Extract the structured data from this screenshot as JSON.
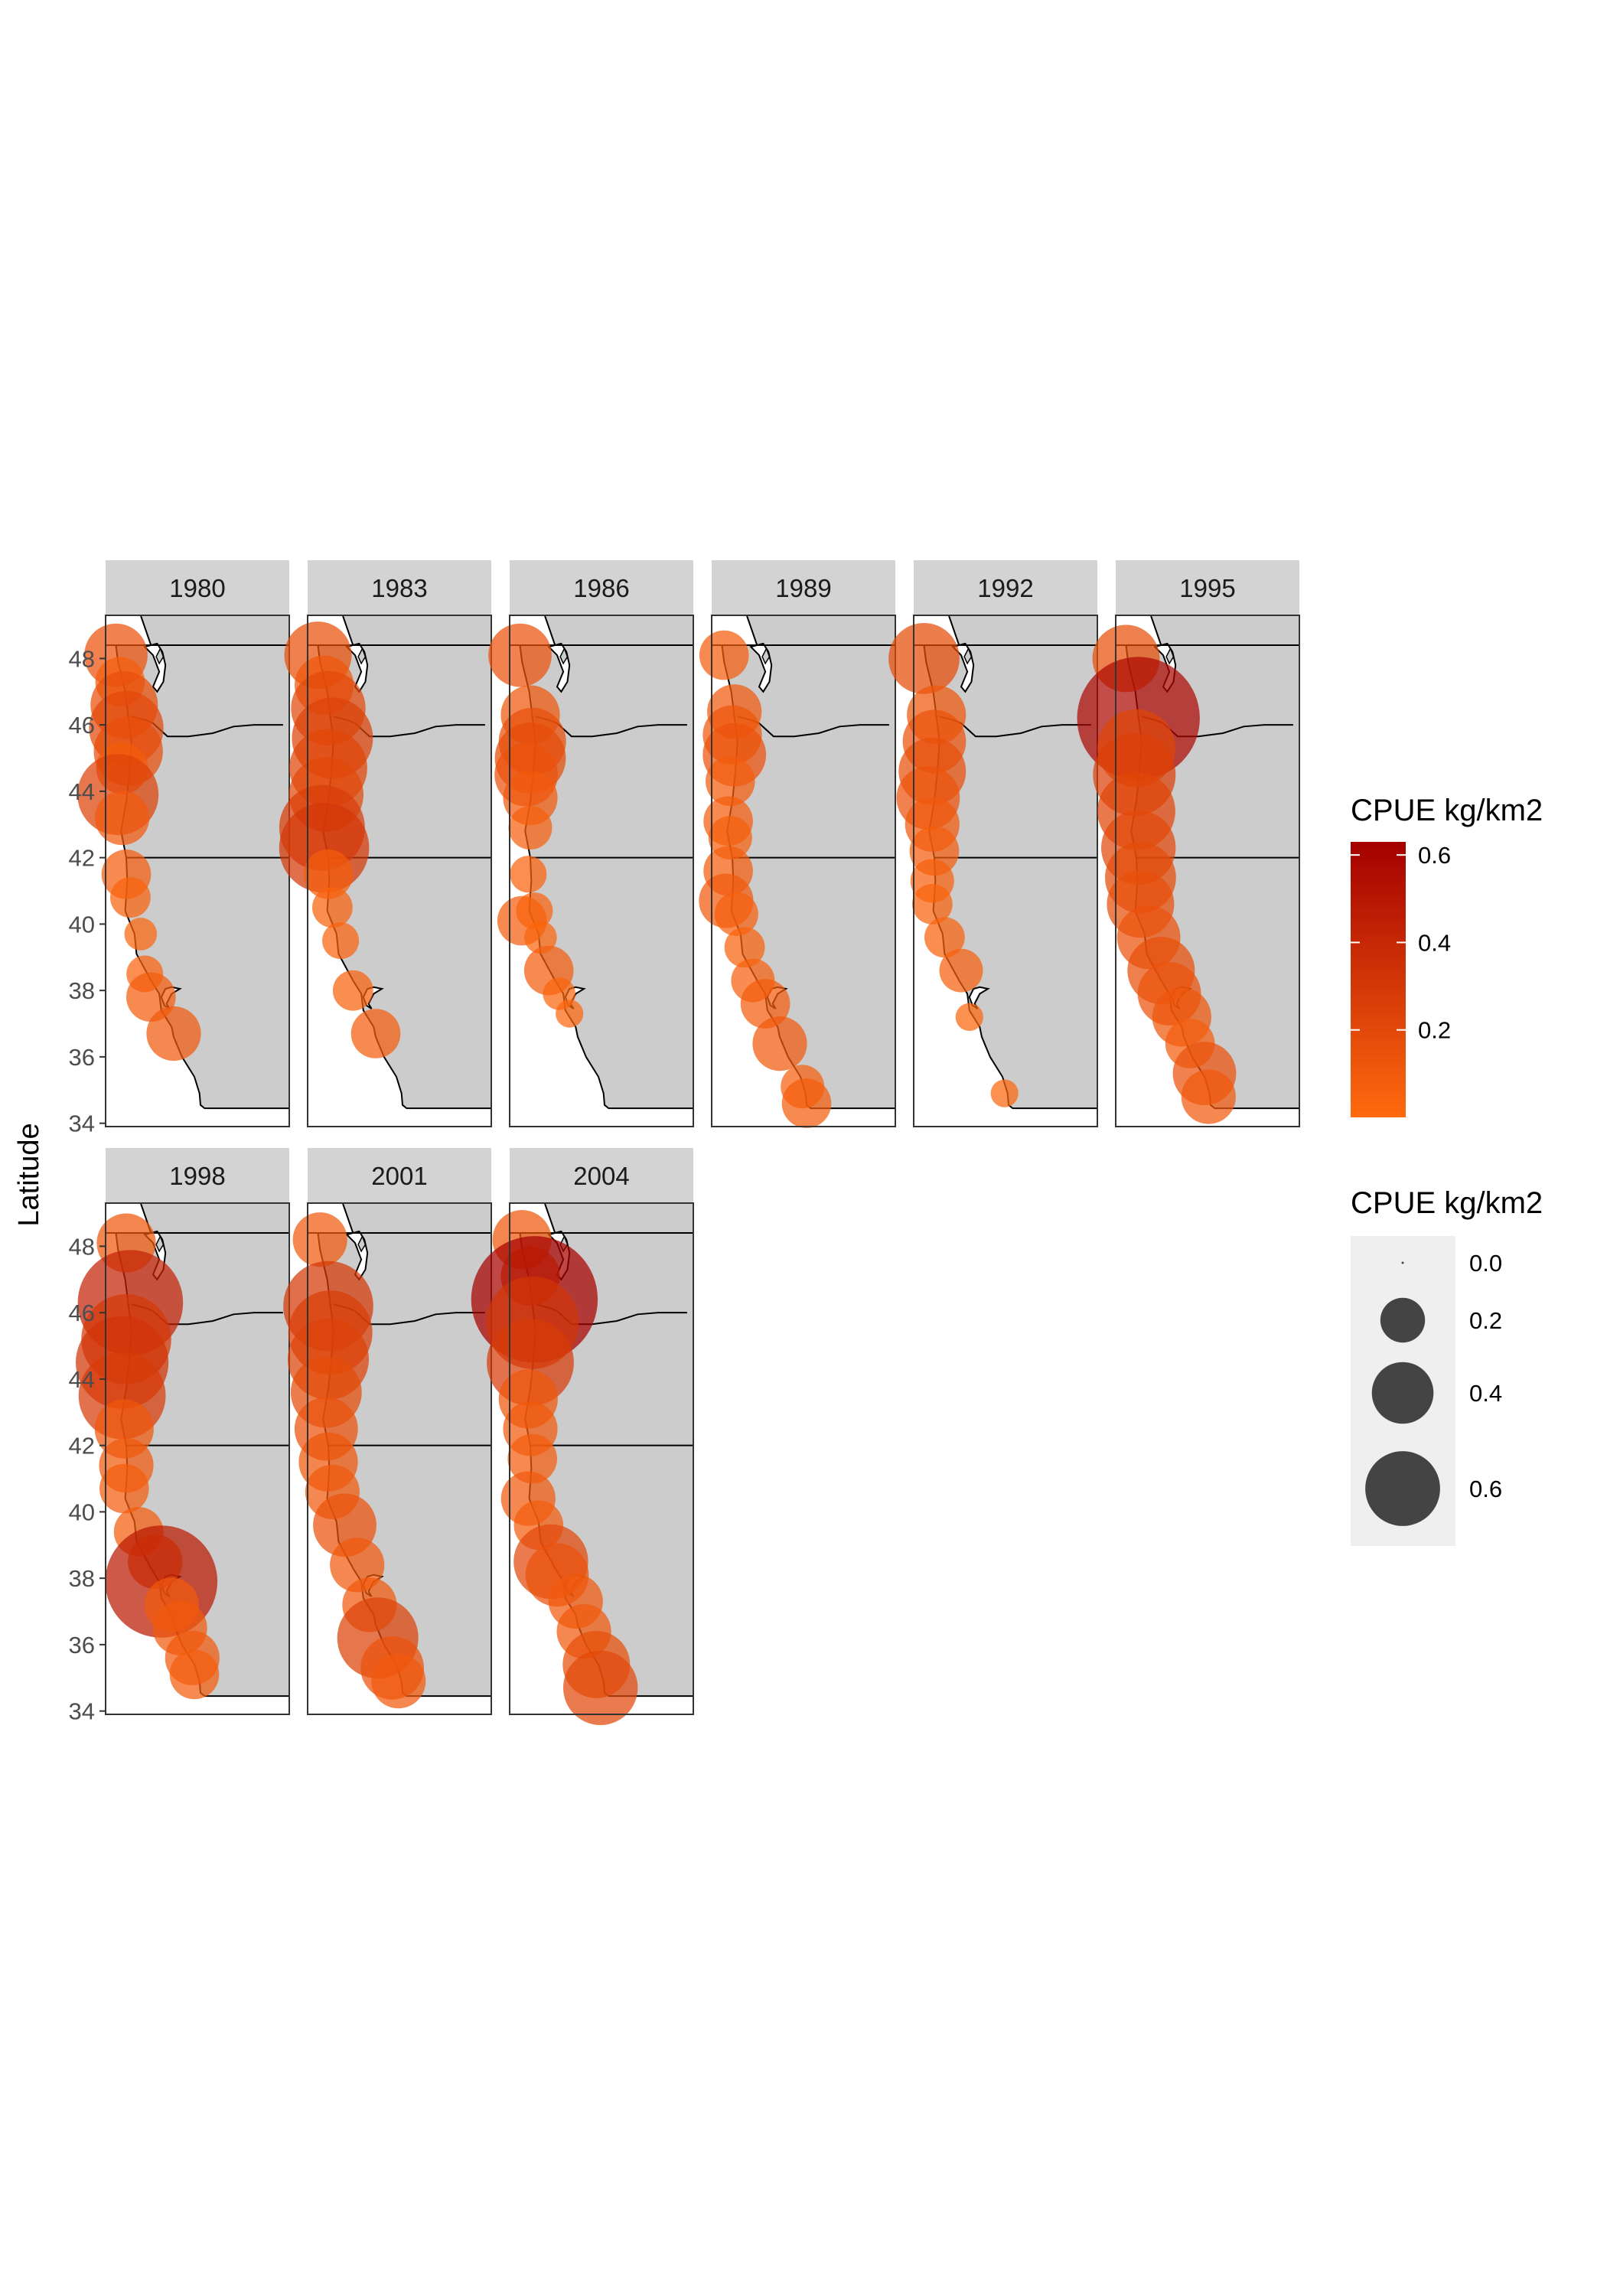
{
  "figure": {
    "y_axis_label": "Latitude",
    "y_ticks": [
      34,
      36,
      38,
      40,
      42,
      44,
      46,
      48
    ],
    "lat_range": [
      33.9,
      49.3
    ],
    "lon_range": [
      -125.2,
      -116.3
    ],
    "colors": {
      "panel_strip": "#d3d3d3",
      "land": "#cccccc",
      "ocean": "#ffffff",
      "coast": "#000000",
      "low_cpue": "#ff6a0e",
      "high_cpue": "#a50000",
      "size_legend_bg": "#efefef",
      "size_legend_point": "#444444"
    }
  },
  "panels": [
    {
      "year": "1980"
    },
    {
      "year": "1983"
    },
    {
      "year": "1986"
    },
    {
      "year": "1989"
    },
    {
      "year": "1992"
    },
    {
      "year": "1995"
    },
    {
      "year": "1998"
    },
    {
      "year": "2001"
    },
    {
      "year": "2004"
    }
  ],
  "legends": {
    "color": {
      "title": "CPUE kg/km2",
      "breaks": [
        0.2,
        0.4,
        0.6
      ],
      "break_labels": [
        "0.2",
        "0.4",
        "0.6"
      ],
      "range": [
        0.0,
        0.63
      ]
    },
    "size": {
      "title": "CPUE kg/km2",
      "breaks": [
        0.0,
        0.2,
        0.4,
        0.6
      ],
      "break_labels": [
        "0.0",
        "0.2",
        "0.4",
        "0.6"
      ]
    }
  },
  "chart_data": {
    "type": "scatter",
    "encoding": "bubble map: point position = station lon/lat, size and color = CPUE kg/km2",
    "ylabel": "Latitude",
    "ylim": [
      34,
      48
    ],
    "series": [
      {
        "name": "1980",
        "points": [
          [
            -124.7,
            48.1,
            0.14
          ],
          [
            -124.5,
            47.3,
            0.08
          ],
          [
            -124.3,
            46.6,
            0.16
          ],
          [
            -124.2,
            45.9,
            0.2
          ],
          [
            -124.1,
            45.2,
            0.17
          ],
          [
            -124.4,
            44.7,
            0.09
          ],
          [
            -124.6,
            43.9,
            0.24
          ],
          [
            -124.4,
            43.2,
            0.1
          ],
          [
            -124.2,
            41.5,
            0.08
          ],
          [
            -124.0,
            40.8,
            0.05
          ],
          [
            -123.5,
            39.7,
            0.03
          ],
          [
            -123.3,
            38.5,
            0.04
          ],
          [
            -123.0,
            37.8,
            0.08
          ],
          [
            -121.9,
            36.7,
            0.1
          ]
        ]
      },
      {
        "name": "1983",
        "points": [
          [
            -124.7,
            48.1,
            0.16
          ],
          [
            -124.4,
            47.2,
            0.12
          ],
          [
            -124.2,
            46.5,
            0.2
          ],
          [
            -124.0,
            45.6,
            0.24
          ],
          [
            -124.2,
            44.7,
            0.22
          ],
          [
            -124.3,
            43.9,
            0.2
          ],
          [
            -124.5,
            42.9,
            0.27
          ],
          [
            -124.4,
            42.3,
            0.3
          ],
          [
            -124.2,
            41.5,
            0.08
          ],
          [
            -124.0,
            40.5,
            0.05
          ],
          [
            -123.6,
            39.5,
            0.04
          ],
          [
            -123.0,
            38.0,
            0.05
          ],
          [
            -121.9,
            36.7,
            0.08
          ]
        ]
      },
      {
        "name": "1986",
        "points": [
          [
            -124.7,
            48.1,
            0.14
          ],
          [
            -124.2,
            46.3,
            0.12
          ],
          [
            -124.1,
            45.5,
            0.16
          ],
          [
            -124.2,
            45.0,
            0.18
          ],
          [
            -124.4,
            44.5,
            0.14
          ],
          [
            -124.2,
            43.8,
            0.1
          ],
          [
            -124.2,
            42.9,
            0.06
          ],
          [
            -124.3,
            41.5,
            0.04
          ],
          [
            -124.6,
            40.1,
            0.08
          ],
          [
            -124.0,
            40.4,
            0.04
          ],
          [
            -123.7,
            39.6,
            0.03
          ],
          [
            -123.3,
            38.6,
            0.08
          ],
          [
            -122.8,
            37.9,
            0.03
          ],
          [
            -122.3,
            37.3,
            0.02
          ]
        ]
      },
      {
        "name": "1989",
        "points": [
          [
            -124.6,
            48.1,
            0.08
          ],
          [
            -124.1,
            46.4,
            0.1
          ],
          [
            -124.2,
            45.7,
            0.12
          ],
          [
            -124.1,
            45.1,
            0.14
          ],
          [
            -124.3,
            44.3,
            0.08
          ],
          [
            -124.4,
            43.1,
            0.08
          ],
          [
            -124.3,
            42.6,
            0.06
          ],
          [
            -124.4,
            41.6,
            0.08
          ],
          [
            -124.5,
            40.7,
            0.1
          ],
          [
            -124.0,
            40.3,
            0.06
          ],
          [
            -123.6,
            39.3,
            0.05
          ],
          [
            -123.2,
            38.3,
            0.06
          ],
          [
            -122.6,
            37.6,
            0.08
          ],
          [
            -121.9,
            36.4,
            0.1
          ],
          [
            -120.8,
            35.1,
            0.06
          ],
          [
            -120.6,
            34.6,
            0.08
          ]
        ]
      },
      {
        "name": "1992",
        "points": [
          [
            -124.7,
            48.0,
            0.18
          ],
          [
            -124.1,
            46.3,
            0.12
          ],
          [
            -124.2,
            45.5,
            0.14
          ],
          [
            -124.3,
            44.6,
            0.16
          ],
          [
            -124.5,
            43.8,
            0.14
          ],
          [
            -124.3,
            43.0,
            0.1
          ],
          [
            -124.2,
            42.2,
            0.08
          ],
          [
            -124.3,
            41.3,
            0.06
          ],
          [
            -124.3,
            40.6,
            0.05
          ],
          [
            -123.7,
            39.6,
            0.05
          ],
          [
            -122.9,
            38.6,
            0.06
          ],
          [
            -122.5,
            37.2,
            0.02
          ],
          [
            -120.8,
            34.9,
            0.02
          ]
        ]
      },
      {
        "name": "1995",
        "points": [
          [
            -124.7,
            48.0,
            0.16
          ],
          [
            -124.1,
            46.2,
            0.58
          ],
          [
            -124.2,
            45.3,
            0.22
          ],
          [
            -124.3,
            44.5,
            0.25
          ],
          [
            -124.2,
            43.4,
            0.22
          ],
          [
            -124.1,
            42.3,
            0.2
          ],
          [
            -124.0,
            41.4,
            0.18
          ],
          [
            -124.0,
            40.6,
            0.16
          ],
          [
            -123.6,
            39.6,
            0.14
          ],
          [
            -123.0,
            38.6,
            0.16
          ],
          [
            -122.6,
            37.9,
            0.14
          ],
          [
            -122.0,
            37.2,
            0.12
          ],
          [
            -121.6,
            36.4,
            0.08
          ],
          [
            -120.9,
            35.5,
            0.14
          ],
          [
            -120.7,
            34.8,
            0.1
          ]
        ]
      },
      {
        "name": "1998",
        "points": [
          [
            -124.2,
            48.1,
            0.12
          ],
          [
            -124.0,
            46.3,
            0.42
          ],
          [
            -124.2,
            45.2,
            0.3
          ],
          [
            -124.4,
            44.5,
            0.32
          ],
          [
            -124.4,
            43.5,
            0.28
          ],
          [
            -124.3,
            42.5,
            0.12
          ],
          [
            -124.2,
            41.4,
            0.1
          ],
          [
            -124.3,
            40.7,
            0.08
          ],
          [
            -123.6,
            39.4,
            0.08
          ],
          [
            -122.8,
            38.5,
            0.1
          ],
          [
            -122.5,
            37.9,
            0.48
          ],
          [
            -122.0,
            37.2,
            0.1
          ],
          [
            -121.6,
            36.5,
            0.1
          ],
          [
            -121.0,
            35.6,
            0.1
          ],
          [
            -120.9,
            35.1,
            0.08
          ]
        ]
      },
      {
        "name": "2001",
        "points": [
          [
            -124.6,
            48.2,
            0.1
          ],
          [
            -124.2,
            46.2,
            0.3
          ],
          [
            -124.1,
            45.4,
            0.26
          ],
          [
            -124.2,
            44.6,
            0.24
          ],
          [
            -124.3,
            43.6,
            0.18
          ],
          [
            -124.3,
            42.5,
            0.14
          ],
          [
            -124.2,
            41.5,
            0.12
          ],
          [
            -124.0,
            40.6,
            0.1
          ],
          [
            -123.4,
            39.6,
            0.14
          ],
          [
            -122.8,
            38.4,
            0.1
          ],
          [
            -122.2,
            37.2,
            0.1
          ],
          [
            -121.8,
            36.2,
            0.24
          ],
          [
            -121.1,
            35.3,
            0.14
          ],
          [
            -120.8,
            34.9,
            0.1
          ]
        ]
      },
      {
        "name": "2004",
        "points": [
          [
            -124.6,
            48.2,
            0.12
          ],
          [
            -124.2,
            47.1,
            0.12
          ],
          [
            -124.0,
            46.4,
            0.62
          ],
          [
            -124.1,
            45.7,
            0.32
          ],
          [
            -124.2,
            44.5,
            0.28
          ],
          [
            -124.3,
            43.4,
            0.12
          ],
          [
            -124.2,
            42.5,
            0.1
          ],
          [
            -124.1,
            41.6,
            0.08
          ],
          [
            -124.3,
            40.4,
            0.1
          ],
          [
            -123.8,
            39.6,
            0.08
          ],
          [
            -123.2,
            38.5,
            0.2
          ],
          [
            -122.9,
            38.1,
            0.14
          ],
          [
            -122.0,
            37.3,
            0.1
          ],
          [
            -121.6,
            36.4,
            0.1
          ],
          [
            -121.0,
            35.4,
            0.16
          ],
          [
            -120.8,
            34.7,
            0.2
          ]
        ]
      }
    ]
  }
}
